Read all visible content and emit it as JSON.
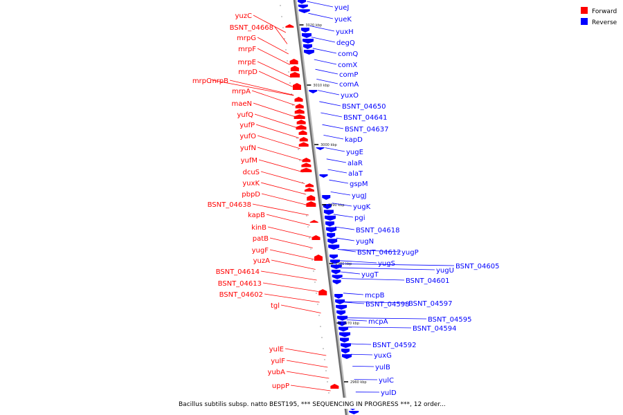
{
  "colors": {
    "forward": "#ff0000",
    "reverse": "#0000ff",
    "backbone": "#999999"
  },
  "legend": {
    "forward_label": "Forward",
    "reverse_label": "Reverse"
  },
  "caption": "Bacillus subtilis subsp. natto BEST195, *** SEQUENCING IN PROGRESS ***, 12 order...",
  "ticks": [
    "3020 kbp",
    "3010 kbp",
    "3000 kbp",
    "2990 kbp",
    "2980 kbp",
    "2970 kbp",
    "2960 kbp"
  ],
  "forward_genes": [
    "yuzC",
    "BSNT_04668",
    "mrpG",
    "mrpF",
    "mrpE",
    "mrpD",
    "mrpC",
    "mrpB",
    "mrpA",
    "maeN",
    "yufQ",
    "yufP",
    "yufO",
    "yufN",
    "yufM",
    "dcuS",
    "yuxK",
    "pbpD",
    "BSNT_04638",
    "kapB",
    "kinB",
    "patB",
    "yugF",
    "yuzA",
    "BSNT_04614",
    "BSNT_04613",
    "BSNT_04602",
    "tgl",
    "yulE",
    "yulF",
    "yubA",
    "uppP"
  ],
  "reverse_genes": [
    "yueJ",
    "yueK",
    "yuxH",
    "degQ",
    "comQ",
    "comX",
    "comP",
    "comA",
    "yuxO",
    "BSNT_04650",
    "BSNT_04641",
    "BSNT_04637",
    "kapD",
    "yugE",
    "alaR",
    "alaT",
    "gspM",
    "yugJ",
    "yugK",
    "pgi",
    "BSNT_04618",
    "yugN",
    "BSNT_04612",
    "yugP",
    "yugS",
    "yugT",
    "yugU",
    "BSNT_04605",
    "BSNT_04601",
    "mcpB",
    "BSNT_04598",
    "BSNT_04597",
    "mcpA",
    "BSNT_04595",
    "BSNT_04594",
    "BSNT_04592",
    "yuxG",
    "yulB",
    "yulC",
    "yulD"
  ]
}
